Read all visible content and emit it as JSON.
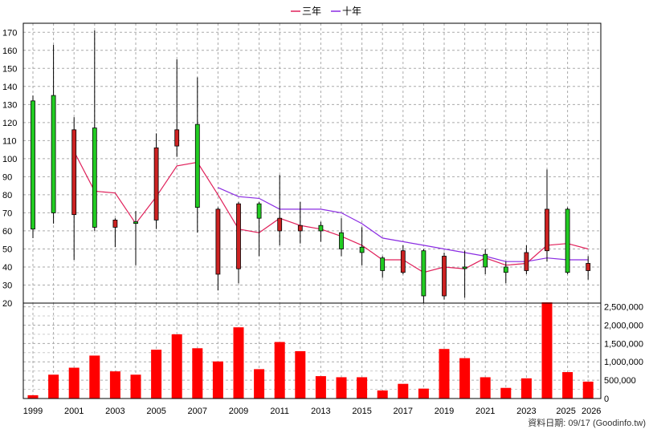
{
  "chart_data": [
    {
      "type": "candlestick",
      "legend_placement": "top-center",
      "legend": [
        {
          "name": "三年",
          "color": "#e0205a"
        },
        {
          "name": "十年",
          "color": "#8a2be2"
        }
      ],
      "ylim": [
        20,
        175
      ],
      "y_ticks": [
        "20",
        "30",
        "40",
        "50",
        "60",
        "70",
        "80",
        "90",
        "100",
        "110",
        "120",
        "130",
        "140",
        "150",
        "160",
        "170"
      ],
      "x_ticks": [
        "1999",
        "2001",
        "2003",
        "2005",
        "2007",
        "2009",
        "2011",
        "2013",
        "2015",
        "2017",
        "2019",
        "2021",
        "2023",
        "2025",
        "2026"
      ],
      "grid": true,
      "up_color": "#22cc22",
      "down_color": "#cc2222",
      "candles": [
        {
          "year": 1999,
          "open": 61,
          "close": 132,
          "high": 135,
          "low": 56
        },
        {
          "year": 2000,
          "open": 70,
          "close": 135,
          "high": 163,
          "low": 64
        },
        {
          "year": 2001,
          "open": 116,
          "close": 69,
          "high": 123,
          "low": 44
        },
        {
          "year": 2002,
          "open": 62,
          "close": 117,
          "high": 171,
          "low": 60
        },
        {
          "year": 2003,
          "open": 66,
          "close": 62,
          "high": 67,
          "low": 51
        },
        {
          "year": 2004,
          "open": 65,
          "close": 65,
          "high": 71,
          "low": 41
        },
        {
          "year": 2005,
          "open": 106,
          "close": 66,
          "high": 114,
          "low": 61
        },
        {
          "year": 2006,
          "open": 116,
          "close": 107,
          "high": 155,
          "low": 101
        },
        {
          "year": 2007,
          "open": 73,
          "close": 119,
          "high": 145,
          "low": 59
        },
        {
          "year": 2008,
          "open": 72,
          "close": 36,
          "high": 73,
          "low": 27
        },
        {
          "year": 2009,
          "open": 75,
          "close": 39,
          "high": 76,
          "low": 31
        },
        {
          "year": 2010,
          "open": 67,
          "close": 75,
          "high": 76,
          "low": 46
        },
        {
          "year": 2011,
          "open": 67,
          "close": 60,
          "high": 91,
          "low": 52
        },
        {
          "year": 2012,
          "open": 63,
          "close": 60,
          "high": 76,
          "low": 53
        },
        {
          "year": 2013,
          "open": 60,
          "close": 63,
          "high": 65,
          "low": 54
        },
        {
          "year": 2014,
          "open": 50,
          "close": 59,
          "high": 67,
          "low": 46
        },
        {
          "year": 2015,
          "open": 48,
          "close": 51,
          "high": 62,
          "low": 41
        },
        {
          "year": 2016,
          "open": 38,
          "close": 45,
          "high": 46,
          "low": 34
        },
        {
          "year": 2017,
          "open": 49,
          "close": 37,
          "high": 52,
          "low": 36
        },
        {
          "year": 2018,
          "open": 24,
          "close": 49,
          "high": 50,
          "low": 20
        },
        {
          "year": 2019,
          "open": 46,
          "close": 24,
          "high": 48,
          "low": 22
        },
        {
          "year": 2020,
          "open": 40,
          "close": 40,
          "high": 49,
          "low": 23
        },
        {
          "year": 2021,
          "open": 40,
          "close": 47,
          "high": 50,
          "low": 36
        },
        {
          "year": 2022,
          "open": 37,
          "close": 40,
          "high": 43,
          "low": 31
        },
        {
          "year": 2023,
          "open": 48,
          "close": 38,
          "high": 52,
          "low": 36
        },
        {
          "year": 2024,
          "open": 72,
          "close": 49,
          "high": 94,
          "low": 43
        },
        {
          "year": 2025,
          "open": 37,
          "close": 72,
          "high": 73,
          "low": 36
        },
        {
          "year": 2026,
          "open": 42,
          "close": 38,
          "high": 46,
          "low": 33
        }
      ],
      "series": [
        {
          "name": "三年",
          "points": [
            [
              2001,
              104
            ],
            [
              2002,
              82
            ],
            [
              2003,
              81
            ],
            [
              2004,
              64
            ],
            [
              2005,
              79
            ],
            [
              2006,
              96
            ],
            [
              2007,
              98
            ],
            [
              2008,
              80
            ],
            [
              2009,
              61
            ],
            [
              2010,
              59
            ],
            [
              2011,
              67
            ],
            [
              2012,
              63
            ],
            [
              2013,
              61
            ],
            [
              2014,
              57
            ],
            [
              2015,
              52
            ],
            [
              2016,
              44
            ],
            [
              2017,
              44
            ],
            [
              2018,
              37
            ],
            [
              2019,
              40
            ],
            [
              2020,
              39
            ],
            [
              2021,
              45
            ],
            [
              2022,
              41
            ],
            [
              2023,
              42
            ],
            [
              2024,
              52
            ],
            [
              2025,
              53
            ],
            [
              2026,
              50
            ]
          ]
        },
        {
          "name": "十年",
          "points": [
            [
              2008,
              84
            ],
            [
              2009,
              79
            ],
            [
              2010,
              78
            ],
            [
              2011,
              72
            ],
            [
              2012,
              72
            ],
            [
              2013,
              72
            ],
            [
              2014,
              70
            ],
            [
              2015,
              64
            ],
            [
              2016,
              56
            ],
            [
              2017,
              54
            ],
            [
              2018,
              52
            ],
            [
              2019,
              50
            ],
            [
              2020,
              48
            ],
            [
              2021,
              46
            ],
            [
              2022,
              43
            ],
            [
              2023,
              43
            ],
            [
              2024,
              45
            ],
            [
              2025,
              44
            ],
            [
              2026,
              44
            ]
          ]
        }
      ]
    },
    {
      "type": "bar",
      "color": "#ff0000",
      "ylim": [
        0,
        2600000
      ],
      "y_ticks": [
        "0",
        "500,000",
        "1,000,000",
        "1,500,000",
        "2,000,000",
        "2,500,000"
      ],
      "grid": true,
      "categories": [
        1999,
        2000,
        2001,
        2002,
        2003,
        2004,
        2005,
        2006,
        2007,
        2008,
        2009,
        2010,
        2011,
        2012,
        2013,
        2014,
        2015,
        2016,
        2017,
        2018,
        2019,
        2020,
        2021,
        2022,
        2023,
        2024,
        2025,
        2026
      ],
      "values": [
        90000,
        650000,
        840000,
        1170000,
        740000,
        650000,
        1330000,
        1750000,
        1370000,
        1010000,
        1940000,
        800000,
        1540000,
        1290000,
        610000,
        580000,
        580000,
        220000,
        400000,
        270000,
        1350000,
        1100000,
        580000,
        290000,
        550000,
        2620000,
        720000,
        460000
      ]
    }
  ],
  "footer": "資料日期: 09/17  (Goodinfo.tw)"
}
